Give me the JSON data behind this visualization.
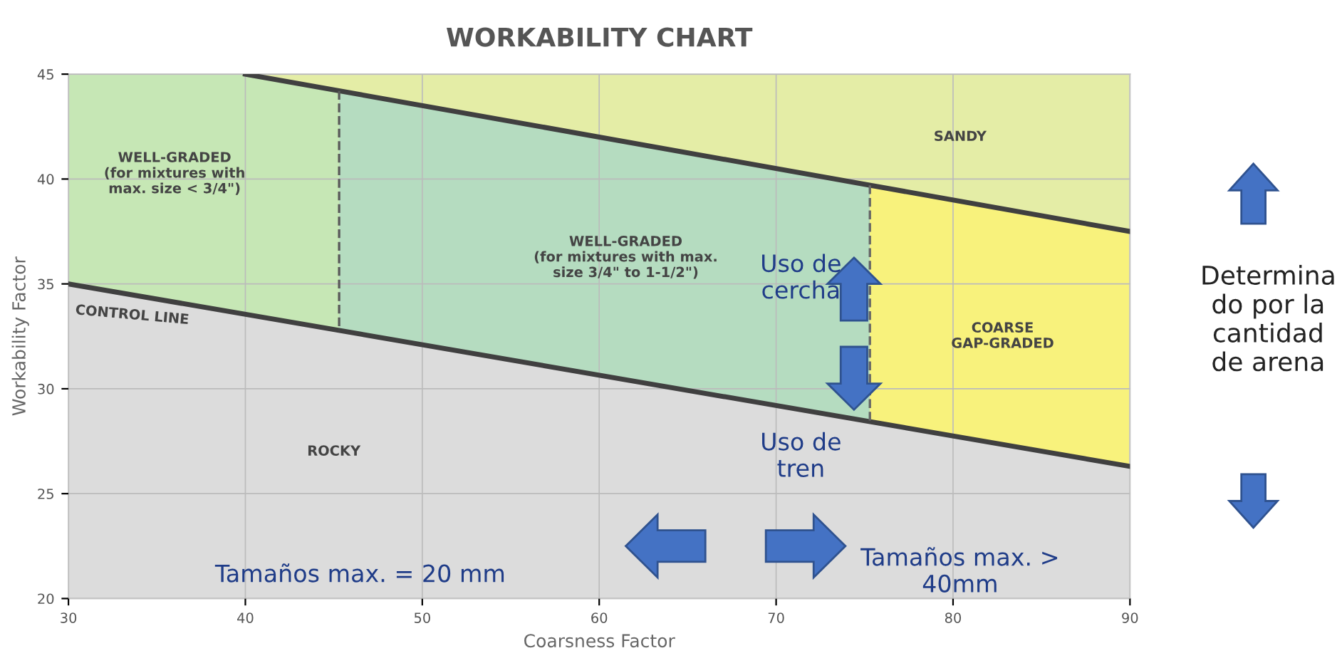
{
  "chart_data": {
    "type": "area",
    "title": "WORKABILITY CHART",
    "xlabel": "Coarsness Factor",
    "ylabel": "Workability Factor",
    "xlim": [
      30,
      90
    ],
    "ylim": [
      20,
      45
    ],
    "xticks": [
      30,
      40,
      50,
      60,
      70,
      80,
      90
    ],
    "yticks": [
      20,
      25,
      30,
      35,
      40,
      45
    ],
    "grid": true,
    "series": [
      {
        "color": "#e4eda6",
        "x": [
          30,
          90
        ],
        "values": [
          45,
          45
        ]
      },
      {
        "color": "#b5dcc0",
        "x": [
          45.3,
          75.3
        ],
        "values": [
          44.2,
          39.7
        ]
      },
      {
        "color": "#f8f27c",
        "x": [
          75.3,
          90
        ],
        "values": [
          39.7,
          37.5
        ]
      },
      {
        "color": "#c6e7b5",
        "x": [
          30,
          40,
          45.3
        ],
        "values": [
          45,
          45,
          44.2
        ]
      },
      {
        "type": "line",
        "color": "#404040",
        "x": [
          40,
          90
        ],
        "values": [
          45,
          37.5
        ]
      },
      {
        "color": "#dcdcdc",
        "line_style": "solid",
        "x": [
          30,
          90
        ],
        "values": [
          35,
          26.3
        ]
      },
      {
        "type": "line",
        "color": "#5a5a5a",
        "line_style": "dashed",
        "x": [
          45.3,
          45.3
        ],
        "values": [
          44.2,
          32.8
        ]
      },
      {
        "type": "line",
        "color": "#666666",
        "line_style": "dashed",
        "x": [
          75.3,
          75.3
        ],
        "values": [
          39.7,
          28.4
        ]
      }
    ],
    "annotations": [
      "SANDY",
      "WELL-GRADED\n(for mixtures with\nmax. size < 3/4\")",
      "WELL-GRADED\n(for mixtures with max.\nsize 3/4\" to 1-1/2\")",
      "COARSE\nGAP-GRADED",
      "ROCKY",
      "CONTROL LINE",
      "Uso de\ncercha",
      "Uso de\ntren",
      "Tamaños max. = 20 mm",
      "Tamaños max. >\n40mm",
      "Determina\ndo por la\ncantidad\nde arena"
    ]
  }
}
